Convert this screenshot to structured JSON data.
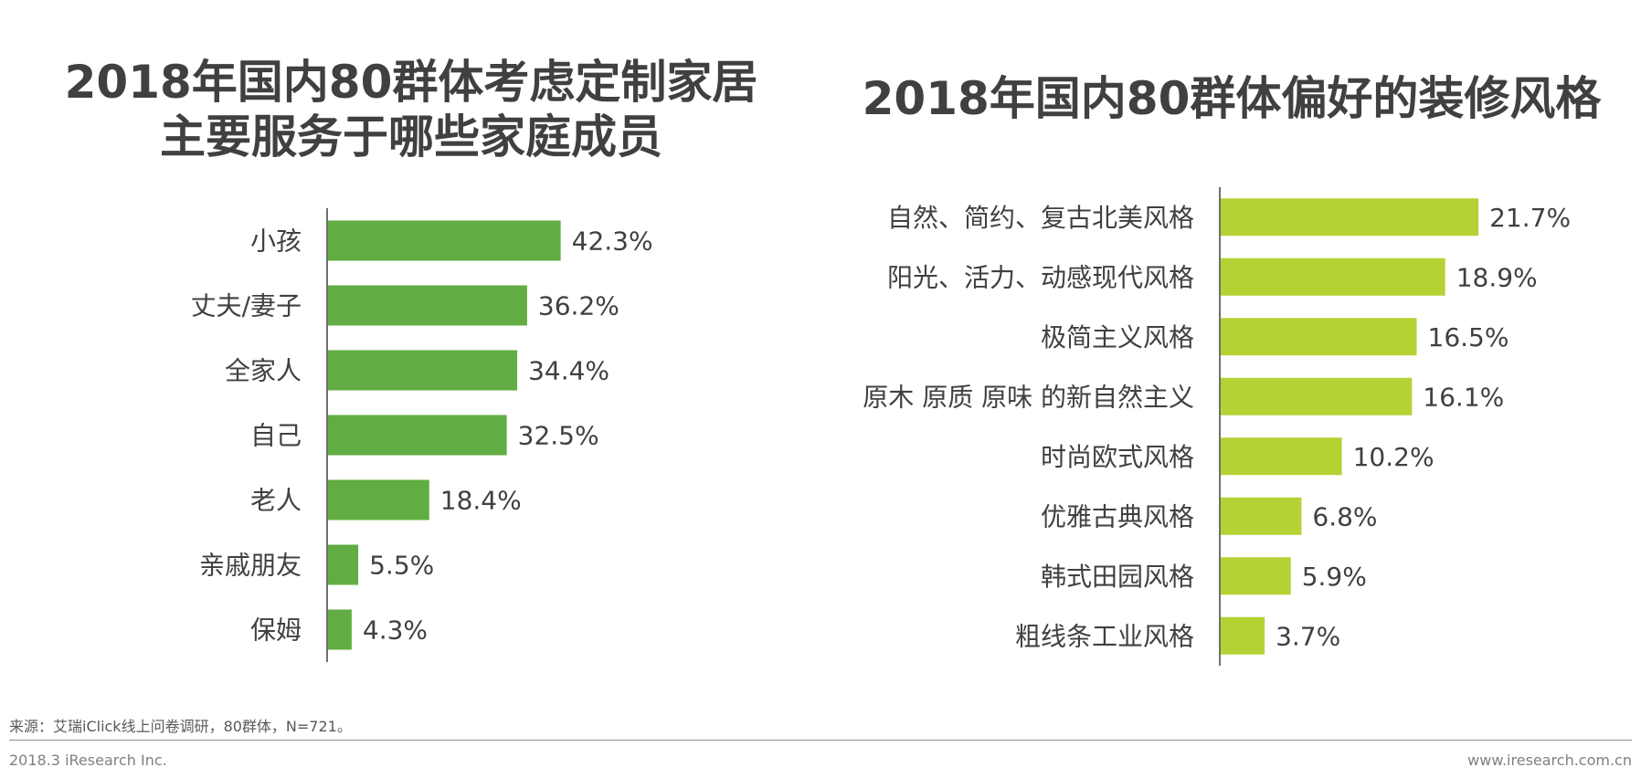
{
  "chart_data": [
    {
      "type": "bar",
      "orientation": "horizontal",
      "title": "2018年国内80群体考虑定制家居\n主要服务于哪些家庭成员",
      "categories": [
        "小孩",
        "丈夫/妻子",
        "全家人",
        "自己",
        "老人",
        "亲戚朋友",
        "保姆"
      ],
      "values": [
        42.3,
        36.2,
        34.4,
        32.5,
        18.4,
        5.5,
        4.3
      ],
      "value_labels": [
        "42.3%",
        "36.2%",
        "34.4%",
        "32.5%",
        "18.4%",
        "5.5%",
        "4.3%"
      ],
      "unit": "%",
      "bar_color": "#62ad43",
      "grid": false
    },
    {
      "type": "bar",
      "orientation": "horizontal",
      "title": "2018年国内80群体偏好的装修风格",
      "categories": [
        "自然、简约、复古北美风格",
        "阳光、活力、动感现代风格",
        "极简主义风格",
        "原木 原质 原味 的新自然主义",
        "时尚欧式风格",
        "优雅古典风格",
        "韩式田园风格",
        "粗线条工业风格"
      ],
      "values": [
        21.7,
        18.9,
        16.5,
        16.1,
        10.2,
        6.8,
        5.9,
        3.7
      ],
      "value_labels": [
        "21.7%",
        "18.9%",
        "16.5%",
        "16.1%",
        "10.2%",
        "6.8%",
        "5.9%",
        "3.7%"
      ],
      "unit": "%",
      "bar_color": "#b4d233",
      "grid": false
    }
  ],
  "footer": {
    "source": "来源：艾瑞iClick线上问卷调研，80群体，N=721。",
    "copyright": "2018.3 iResearch Inc.",
    "website": "www.iresearch.com.cn"
  }
}
